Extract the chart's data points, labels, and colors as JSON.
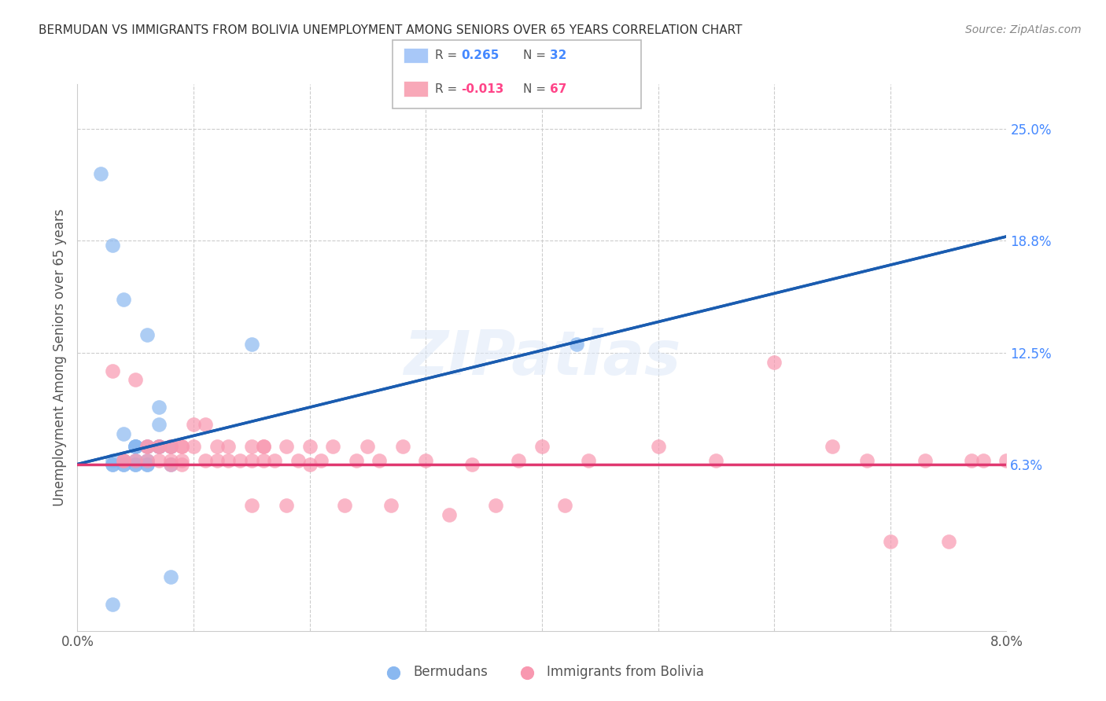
{
  "title": "BERMUDAN VS IMMIGRANTS FROM BOLIVIA UNEMPLOYMENT AMONG SENIORS OVER 65 YEARS CORRELATION CHART",
  "source": "Source: ZipAtlas.com",
  "ylabel": "Unemployment Among Seniors over 65 years",
  "watermark": "ZIPatlas",
  "legend_entries": [
    {
      "label": "Bermudans",
      "R": "0.265",
      "N": "32",
      "color": "#a8c8f8"
    },
    {
      "label": "Immigrants from Bolivia",
      "R": "-0.013",
      "N": "67",
      "color": "#f8a8b8"
    }
  ],
  "bermuda_color": "#8ab8f0",
  "bolivia_color": "#f898b0",
  "bermuda_line_color": "#1a5cb0",
  "bolivia_line_color": "#e03870",
  "xmin": 0.0,
  "xmax": 0.08,
  "ymin": -0.03,
  "ymax": 0.275,
  "right_ytick_vals": [
    0.063,
    0.125,
    0.188,
    0.25
  ],
  "right_ytick_labels": [
    "6.3%",
    "12.5%",
    "18.8%",
    "25.0%"
  ],
  "xtick_vals": [
    0.0,
    0.01,
    0.02,
    0.03,
    0.04,
    0.05,
    0.06,
    0.07,
    0.08
  ],
  "xtick_show_labels": [
    0,
    8
  ],
  "bermudans_x": [
    0.002,
    0.003,
    0.004,
    0.006,
    0.007,
    0.007,
    0.007,
    0.008,
    0.003,
    0.004,
    0.005,
    0.005,
    0.005,
    0.004,
    0.003,
    0.003,
    0.004,
    0.004,
    0.005,
    0.005,
    0.005,
    0.005,
    0.006,
    0.006,
    0.006,
    0.006,
    0.007,
    0.008,
    0.008,
    0.015,
    0.043,
    0.003
  ],
  "bermudans_y": [
    0.225,
    0.185,
    0.155,
    0.135,
    0.095,
    0.085,
    0.073,
    0.0,
    0.063,
    0.063,
    0.063,
    0.073,
    0.073,
    0.08,
    0.063,
    0.065,
    0.065,
    0.063,
    0.063,
    0.073,
    0.073,
    0.065,
    0.065,
    0.063,
    0.073,
    0.063,
    0.073,
    0.063,
    0.073,
    0.13,
    0.13,
    -0.015
  ],
  "bolivia_x": [
    0.003,
    0.004,
    0.004,
    0.005,
    0.005,
    0.006,
    0.006,
    0.006,
    0.007,
    0.007,
    0.007,
    0.008,
    0.008,
    0.008,
    0.008,
    0.009,
    0.009,
    0.009,
    0.009,
    0.01,
    0.01,
    0.011,
    0.011,
    0.012,
    0.012,
    0.013,
    0.013,
    0.014,
    0.015,
    0.015,
    0.015,
    0.016,
    0.016,
    0.016,
    0.017,
    0.018,
    0.018,
    0.019,
    0.02,
    0.02,
    0.021,
    0.022,
    0.023,
    0.024,
    0.025,
    0.026,
    0.027,
    0.028,
    0.03,
    0.032,
    0.034,
    0.036,
    0.038,
    0.04,
    0.042,
    0.044,
    0.05,
    0.055,
    0.06,
    0.065,
    0.068,
    0.07,
    0.073,
    0.075,
    0.077,
    0.078,
    0.08
  ],
  "bolivia_y": [
    0.115,
    0.065,
    0.065,
    0.11,
    0.065,
    0.073,
    0.065,
    0.073,
    0.073,
    0.065,
    0.073,
    0.073,
    0.065,
    0.073,
    0.063,
    0.073,
    0.065,
    0.073,
    0.063,
    0.085,
    0.073,
    0.085,
    0.065,
    0.073,
    0.065,
    0.073,
    0.065,
    0.065,
    0.073,
    0.065,
    0.04,
    0.073,
    0.065,
    0.073,
    0.065,
    0.073,
    0.04,
    0.065,
    0.063,
    0.073,
    0.065,
    0.073,
    0.04,
    0.065,
    0.073,
    0.065,
    0.04,
    0.073,
    0.065,
    0.035,
    0.063,
    0.04,
    0.065,
    0.073,
    0.04,
    0.065,
    0.073,
    0.065,
    0.12,
    0.073,
    0.065,
    0.02,
    0.065,
    0.02,
    0.065,
    0.065,
    0.065
  ],
  "bermuda_trend_start_x": 0.0,
  "bermuda_trend_start_y": 0.063,
  "bermuda_trend_end_x": 0.08,
  "bermuda_trend_end_y": 0.19,
  "bolivia_trend_start_x": 0.0,
  "bolivia_trend_start_y": 0.063,
  "bolivia_trend_end_x": 0.08,
  "bolivia_trend_end_y": 0.063
}
